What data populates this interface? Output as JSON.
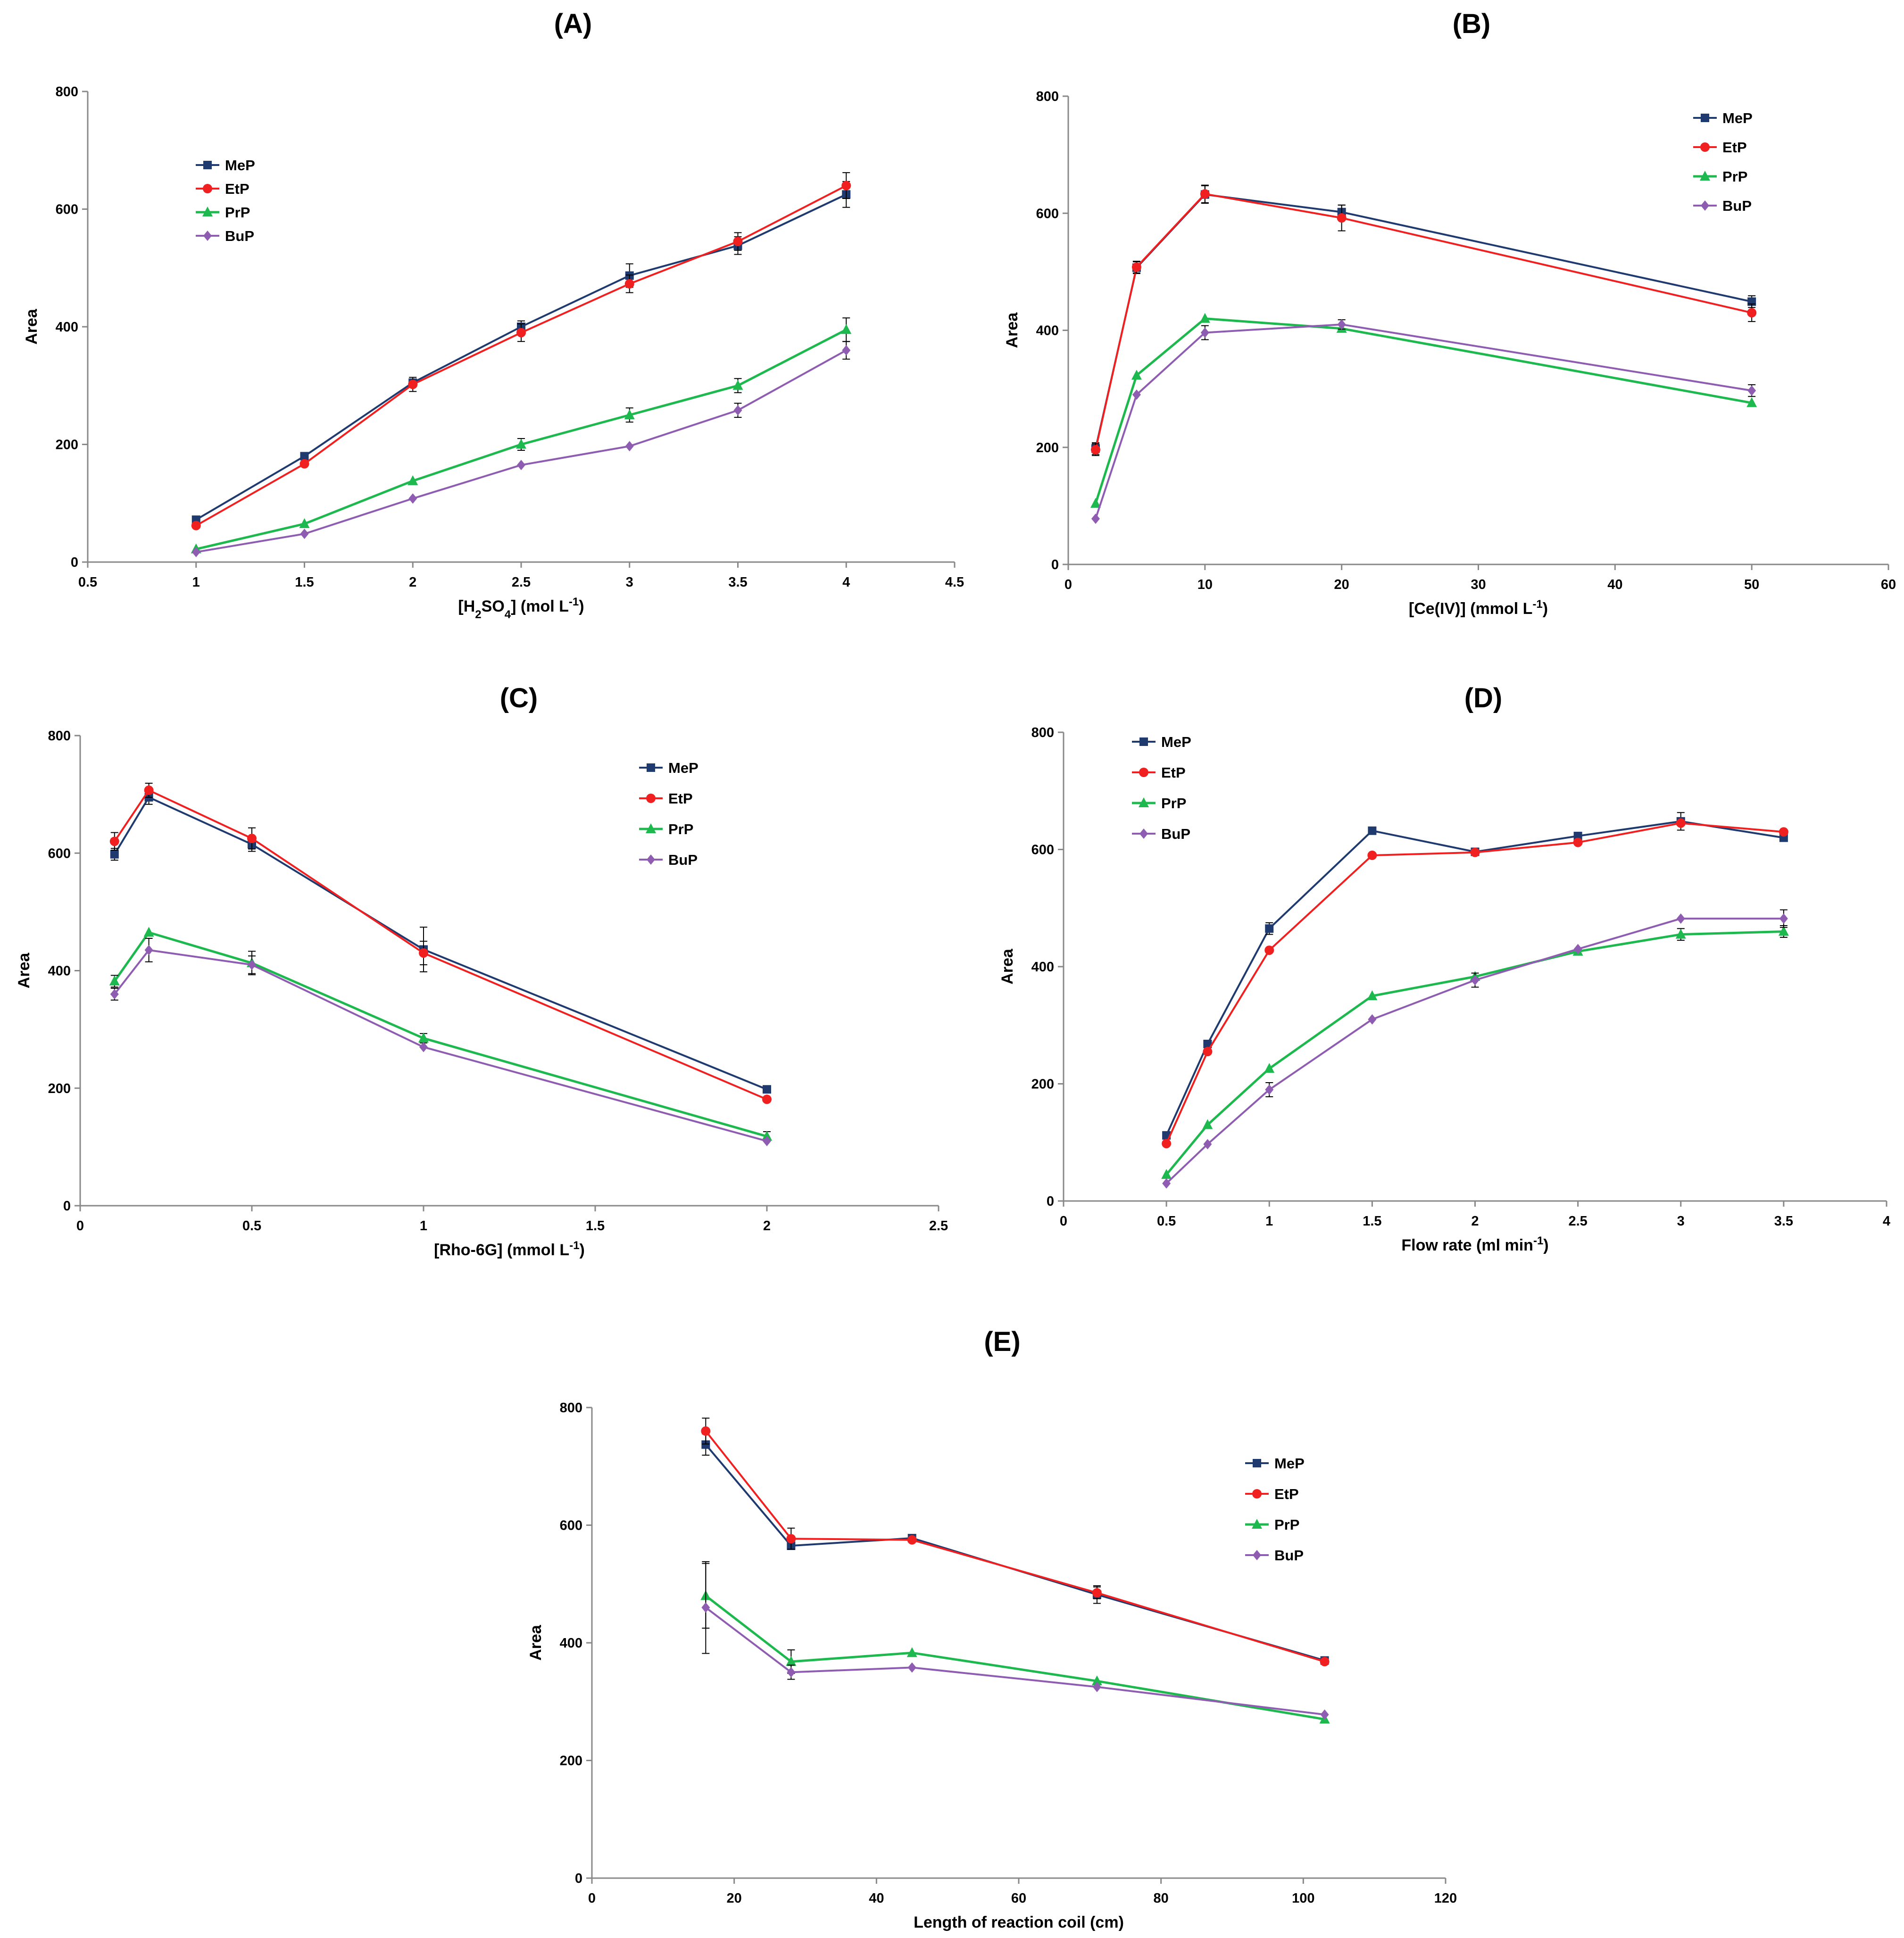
{
  "colors": {
    "MeP": "#1F3A6E",
    "EtP": "#F02020",
    "PrP": "#1DB84E",
    "BuP": "#8E5CB0",
    "axis": "#888888",
    "errorbar": "#000000"
  },
  "chart_data": [
    {
      "id": "A",
      "type": "line",
      "title": "(A)",
      "xlabel": "[H2SO4] (mol L-1)",
      "xlabel_parts": {
        "pre": "[H",
        "sub1": "2",
        "mid": "SO",
        "sub2": "4",
        "post": "] (mol L",
        "sup": "-1",
        "end": ")"
      },
      "ylabel": "Area",
      "xlim": [
        0.5,
        4.5
      ],
      "ylim": [
        0,
        800
      ],
      "xticks": [
        0.5,
        1,
        1.5,
        2,
        2.5,
        3,
        3.5,
        4,
        4.5
      ],
      "xtick_labels": [
        "0.5",
        "1",
        "1.5",
        "2",
        "2.5",
        "3",
        "3.5",
        "4",
        "4.5"
      ],
      "yticks": [
        0,
        200,
        400,
        600,
        800
      ],
      "ytick_labels": [
        "0",
        "200",
        "400",
        "600",
        "800"
      ],
      "legend_position": "top-left",
      "x": [
        1,
        1.5,
        2,
        2.5,
        3,
        3.5,
        4
      ],
      "series": [
        {
          "name": "MeP",
          "values": [
            72,
            180,
            305,
            400,
            487,
            538,
            625
          ],
          "errors": [
            0,
            0,
            0,
            10,
            20,
            15,
            22
          ]
        },
        {
          "name": "EtP",
          "values": [
            62,
            167,
            302,
            390,
            473,
            545,
            640
          ],
          "errors": [
            0,
            0,
            12,
            15,
            15,
            15,
            22
          ]
        },
        {
          "name": "PrP",
          "values": [
            22,
            65,
            138,
            200,
            250,
            300,
            395
          ],
          "errors": [
            0,
            0,
            0,
            10,
            12,
            12,
            20
          ]
        },
        {
          "name": "BuP",
          "values": [
            17,
            48,
            108,
            165,
            197,
            258,
            360
          ],
          "errors": [
            0,
            0,
            0,
            0,
            0,
            12,
            15
          ]
        }
      ]
    },
    {
      "id": "B",
      "type": "line",
      "title": "(B)",
      "xlabel": "[Ce(IV)] (mmol L-1)",
      "xlabel_parts": {
        "pre": "[Ce(IV)] (mmol L",
        "sup": "-1",
        "end": ")"
      },
      "ylabel": "Area",
      "xlim": [
        0,
        60
      ],
      "ylim": [
        0,
        800
      ],
      "xticks": [
        0,
        10,
        20,
        30,
        40,
        50,
        60
      ],
      "xtick_labels": [
        "0",
        "10",
        "20",
        "30",
        "40",
        "50",
        "60"
      ],
      "yticks": [
        0,
        200,
        400,
        600,
        800
      ],
      "ytick_labels": [
        "0",
        "200",
        "400",
        "600",
        "800"
      ],
      "legend_position": "top-right",
      "x": [
        2,
        5,
        10,
        20,
        50
      ],
      "series": [
        {
          "name": "MeP",
          "values": [
            198,
            507,
            632,
            602,
            449
          ],
          "errors": [
            10,
            10,
            15,
            12,
            10
          ]
        },
        {
          "name": "EtP",
          "values": [
            196,
            508,
            633,
            592,
            430
          ],
          "errors": [
            10,
            10,
            15,
            22,
            15
          ]
        },
        {
          "name": "PrP",
          "values": [
            104,
            323,
            420,
            403,
            276
          ],
          "errors": [
            0,
            0,
            0,
            0,
            0
          ]
        },
        {
          "name": "BuP",
          "values": [
            78,
            290,
            396,
            410,
            297
          ],
          "errors": [
            0,
            0,
            12,
            8,
            10
          ]
        }
      ]
    },
    {
      "id": "C",
      "type": "line",
      "title": "(C)",
      "xlabel": "[Rho-6G] (mmol L-1)",
      "xlabel_parts": {
        "pre": "[Rho-6G] (mmol L",
        "sup": "-1",
        "end": ")"
      },
      "ylabel": "Area",
      "xlim": [
        0,
        2.5
      ],
      "ylim": [
        0,
        800
      ],
      "xticks": [
        0,
        0.5,
        1,
        1.5,
        2,
        2.5
      ],
      "xtick_labels": [
        "0",
        "0.5",
        "1",
        "1.5",
        "2",
        "2.5"
      ],
      "yticks": [
        0,
        200,
        400,
        600,
        800
      ],
      "ytick_labels": [
        "0",
        "200",
        "400",
        "600",
        "800"
      ],
      "legend_position": "top-right",
      "x": [
        0.1,
        0.2,
        0.5,
        1,
        2
      ],
      "series": [
        {
          "name": "MeP",
          "values": [
            598,
            695,
            615,
            436,
            198
          ],
          "errors": [
            10,
            12,
            12,
            38,
            0
          ]
        },
        {
          "name": "EtP",
          "values": [
            620,
            707,
            625,
            430,
            181
          ],
          "errors": [
            15,
            12,
            18,
            20,
            0
          ]
        },
        {
          "name": "PrP",
          "values": [
            382,
            465,
            413,
            285,
            118
          ],
          "errors": [
            10,
            0,
            20,
            8,
            8
          ]
        },
        {
          "name": "BuP",
          "values": [
            360,
            435,
            410,
            270,
            110
          ],
          "errors": [
            10,
            20,
            15,
            0,
            0
          ]
        }
      ]
    },
    {
      "id": "D",
      "type": "line",
      "title": "(D)",
      "xlabel": "Flow rate (ml min-1)",
      "xlabel_parts": {
        "pre": "Flow rate (ml min",
        "sup": "-1",
        "end": ")"
      },
      "ylabel": "Area",
      "xlim": [
        0,
        4
      ],
      "ylim": [
        0,
        800
      ],
      "xticks": [
        0,
        0.5,
        1,
        1.5,
        2,
        2.5,
        3,
        3.5,
        4
      ],
      "xtick_labels": [
        "0",
        "0.5",
        "1",
        "1.5",
        "2",
        "2.5",
        "3",
        "3.5",
        "4"
      ],
      "yticks": [
        0,
        200,
        400,
        600,
        800
      ],
      "ytick_labels": [
        "0",
        "200",
        "400",
        "600",
        "800"
      ],
      "legend_position": "top-left",
      "x": [
        0.5,
        0.7,
        1,
        1.5,
        2,
        2.5,
        3,
        3.5
      ],
      "series": [
        {
          "name": "MeP",
          "values": [
            112,
            268,
            465,
            632,
            596,
            623,
            648,
            620
          ],
          "errors": [
            0,
            0,
            10,
            0,
            0,
            0,
            15,
            0
          ]
        },
        {
          "name": "EtP",
          "values": [
            98,
            255,
            428,
            590,
            595,
            612,
            645,
            630
          ],
          "errors": [
            0,
            0,
            0,
            0,
            0,
            0,
            0,
            0
          ]
        },
        {
          "name": "PrP",
          "values": [
            45,
            130,
            226,
            350,
            383,
            426,
            455,
            460
          ],
          "errors": [
            0,
            0,
            0,
            0,
            0,
            0,
            10,
            10
          ]
        },
        {
          "name": "BuP",
          "values": [
            30,
            97,
            190,
            310,
            377,
            430,
            482,
            482
          ],
          "errors": [
            0,
            0,
            12,
            0,
            12,
            0,
            0,
            15
          ]
        }
      ]
    },
    {
      "id": "E",
      "type": "line",
      "title": "(E)",
      "xlabel": "Length of reaction coil (cm)",
      "xlabel_parts": {
        "pre": "Length of reaction coil (cm)"
      },
      "ylabel": "Area",
      "xlim": [
        0,
        120
      ],
      "ylim": [
        0,
        800
      ],
      "xticks": [
        0,
        20,
        40,
        60,
        80,
        100,
        120
      ],
      "xtick_labels": [
        "0",
        "20",
        "40",
        "60",
        "80",
        "100",
        "120"
      ],
      "yticks": [
        0,
        200,
        400,
        600,
        800
      ],
      "ytick_labels": [
        "0",
        "200",
        "400",
        "600",
        "800"
      ],
      "legend_position": "top-right",
      "x": [
        16,
        28,
        45,
        71,
        103
      ],
      "series": [
        {
          "name": "MeP",
          "values": [
            737,
            565,
            578,
            482,
            370
          ],
          "errors": [
            18,
            0,
            0,
            15,
            0
          ]
        },
        {
          "name": "EtP",
          "values": [
            760,
            577,
            575,
            485,
            368
          ],
          "errors": [
            22,
            18,
            0,
            10,
            0
          ]
        },
        {
          "name": "PrP",
          "values": [
            480,
            368,
            383,
            335,
            270
          ],
          "errors": [
            55,
            20,
            0,
            0,
            0
          ]
        },
        {
          "name": "BuP",
          "values": [
            460,
            350,
            358,
            325,
            278
          ],
          "errors": [
            78,
            12,
            0,
            0,
            0
          ]
        }
      ]
    }
  ]
}
